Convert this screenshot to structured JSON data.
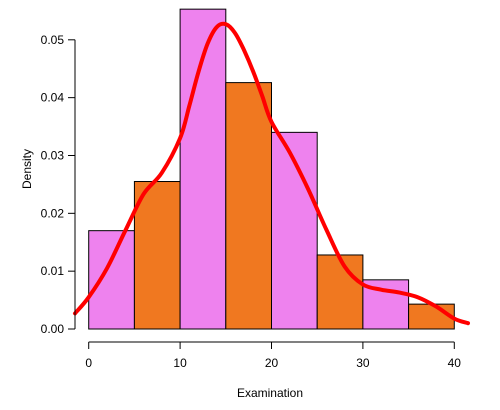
{
  "chart_data": {
    "type": "bar",
    "title": "",
    "xlabel": "Examination",
    "ylabel": "Density",
    "xlim": [
      -1.5,
      41.5
    ],
    "ylim": [
      0,
      0.0555
    ],
    "grid": false,
    "bins": [
      {
        "start": 0,
        "end": 5,
        "value": 0.017
      },
      {
        "start": 5,
        "end": 10,
        "value": 0.0255
      },
      {
        "start": 10,
        "end": 15,
        "value": 0.0553
      },
      {
        "start": 15,
        "end": 20,
        "value": 0.0426
      },
      {
        "start": 20,
        "end": 25,
        "value": 0.034
      },
      {
        "start": 25,
        "end": 30,
        "value": 0.0128
      },
      {
        "start": 30,
        "end": 35,
        "value": 0.0085
      },
      {
        "start": 35,
        "end": 40,
        "value": 0.0043
      }
    ],
    "x_ticks": [
      0,
      10,
      20,
      30,
      40
    ],
    "x_tick_labels": [
      "0",
      "10",
      "20",
      "30",
      "40"
    ],
    "y_ticks": [
      0,
      0.01,
      0.02,
      0.03,
      0.04,
      0.05
    ],
    "y_tick_labels": [
      "0.00",
      "0.01",
      "0.02",
      "0.03",
      "0.04",
      "0.05"
    ],
    "density_curve": {
      "x": [
        -1.5,
        0,
        2,
        4,
        6,
        8,
        10,
        11,
        12,
        13,
        14,
        15,
        16,
        17,
        18,
        19,
        20,
        22,
        24,
        26,
        28,
        30,
        32,
        34,
        36,
        38,
        40,
        41.5
      ],
      "y": [
        0.0027,
        0.0055,
        0.0105,
        0.017,
        0.0233,
        0.027,
        0.033,
        0.0385,
        0.0444,
        0.0493,
        0.0522,
        0.0527,
        0.0512,
        0.0482,
        0.0445,
        0.0402,
        0.0358,
        0.0305,
        0.0242,
        0.0172,
        0.0108,
        0.0077,
        0.0068,
        0.0063,
        0.0055,
        0.0039,
        0.0018,
        0.001
      ]
    },
    "colors": {
      "bar_colors": [
        "#ee82ee",
        "#f07820"
      ],
      "density_line": "#ff0000"
    }
  }
}
